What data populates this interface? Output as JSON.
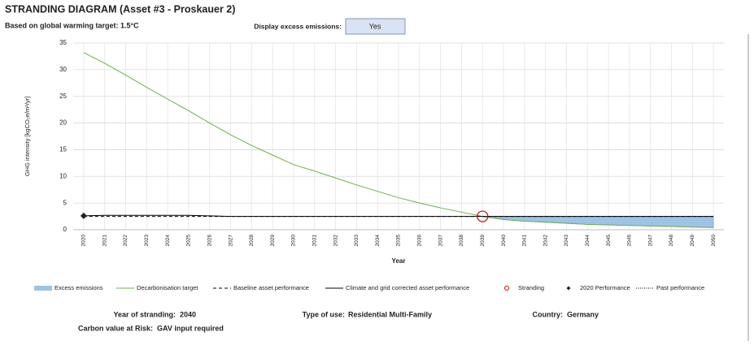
{
  "header": {
    "title": "STRANDING DIAGRAM (Asset #3 - Proskauer 2)",
    "subtitle": "Based on global warming target: 1.5°C",
    "toggle_label": "Display excess emissions:",
    "toggle_value": "Yes"
  },
  "footer": {
    "stranding_label": "Year of stranding:",
    "stranding_value": "2040",
    "use_label": "Type of use:",
    "use_value": "Residential Multi-Family",
    "country_label": "Country:",
    "country_value": "Germany",
    "risk_label": "Carbon value at Risk:",
    "risk_value": "GAV input required"
  },
  "chart_data": {
    "type": "line",
    "x_label": "Year",
    "y_label": "GHG intensity [kgCO₂e/m²/yr]",
    "categories": [
      "2020",
      "2021",
      "2022",
      "2023",
      "2024",
      "2025",
      "2026",
      "2027",
      "2028",
      "2029",
      "2030",
      "2031",
      "2032",
      "2033",
      "2034",
      "2035",
      "2036",
      "2037",
      "2038",
      "2039",
      "2040",
      "2041",
      "2042",
      "2043",
      "2044",
      "2045",
      "2046",
      "2047",
      "2048",
      "2049",
      "2050"
    ],
    "ylim": [
      0,
      35
    ],
    "yticks": [
      0,
      5,
      10,
      15,
      20,
      25,
      30,
      35
    ],
    "grid": true,
    "series": [
      {
        "name": "Excess emissions",
        "style": "area",
        "stacked_on": 1,
        "color": "#9dc3e6",
        "values": [
          null,
          null,
          null,
          null,
          null,
          null,
          null,
          null,
          null,
          null,
          null,
          null,
          null,
          null,
          null,
          null,
          null,
          null,
          null,
          0,
          0.6,
          0.9,
          1.1,
          1.3,
          1.5,
          1.6,
          1.7,
          1.8,
          1.9,
          2.0,
          2.1
        ]
      },
      {
        "name": "Decarbonisation target",
        "style": "line",
        "color": "#70ad47",
        "values": [
          33.2,
          31.2,
          29,
          26.7,
          24.5,
          22.3,
          20,
          17.8,
          15.8,
          14,
          12.2,
          11,
          9.7,
          8.4,
          7.2,
          6,
          5,
          4.1,
          3.3,
          2.5,
          1.9,
          1.6,
          1.4,
          1.2,
          1.0,
          0.9,
          0.8,
          0.7,
          0.6,
          0.5,
          0.4
        ]
      },
      {
        "name": "Baseline asset performance",
        "style": "line",
        "dash": "4 3",
        "color": "#000000",
        "values": [
          2.5,
          2.5,
          2.5,
          2.5,
          2.5,
          2.5,
          2.5,
          2.5,
          2.5,
          2.5,
          2.5,
          2.5,
          2.5,
          2.5,
          2.5,
          2.5,
          2.5,
          2.5,
          2.5,
          2.5,
          2.5,
          2.5,
          2.5,
          2.5,
          2.5,
          2.5,
          2.5,
          2.5,
          2.5,
          2.5,
          2.5
        ]
      },
      {
        "name": "Climate and grid corrected asset performance",
        "style": "line",
        "color": "#000000",
        "values": [
          2.6,
          2.7,
          2.7,
          2.7,
          2.7,
          2.7,
          2.6,
          2.5,
          2.5,
          2.5,
          2.5,
          2.5,
          2.5,
          2.5,
          2.5,
          2.5,
          2.5,
          2.5,
          2.5,
          2.5,
          2.5,
          2.5,
          2.5,
          2.5,
          2.5,
          2.5,
          2.5,
          2.5,
          2.5,
          2.5,
          2.5
        ]
      },
      {
        "name": "Stranding",
        "style": "circle",
        "color": "#e00000",
        "values": [
          null,
          null,
          null,
          null,
          null,
          null,
          null,
          null,
          null,
          null,
          null,
          null,
          null,
          null,
          null,
          null,
          null,
          null,
          null,
          2.5,
          null,
          null,
          null,
          null,
          null,
          null,
          null,
          null,
          null,
          null,
          null
        ]
      },
      {
        "name": "2020 Performance",
        "style": "diamond",
        "color": "#222222",
        "values": [
          2.6,
          null,
          null,
          null,
          null,
          null,
          null,
          null,
          null,
          null,
          null,
          null,
          null,
          null,
          null,
          null,
          null,
          null,
          null,
          null,
          null,
          null,
          null,
          null,
          null,
          null,
          null,
          null,
          null,
          null,
          null
        ]
      },
      {
        "name": "Past performance",
        "style": "line",
        "dash": "1 1.5",
        "color": "#000000",
        "values": [
          2.6,
          null,
          null,
          null,
          null,
          null,
          null,
          null,
          null,
          null,
          null,
          null,
          null,
          null,
          null,
          null,
          null,
          null,
          null,
          null,
          null,
          null,
          null,
          null,
          null,
          null,
          null,
          null,
          null,
          null,
          null
        ]
      }
    ]
  }
}
